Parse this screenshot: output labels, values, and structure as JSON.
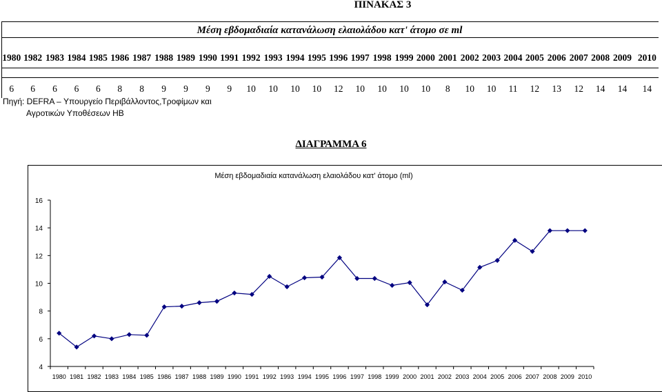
{
  "table": {
    "heading": "ΠΙΝΑΚΑΣ 3",
    "caption": "Μέση εβδομαδιαία κατανάλωση ελαιολάδου κατ' άτομο σε ml",
    "years": [
      "1980",
      "1982",
      "1983",
      "1984",
      "1985",
      "1986",
      "1987",
      "1988",
      "1989",
      "1990",
      "1991",
      "1992",
      "1993",
      "1994",
      "1995",
      "1996",
      "1997",
      "1998",
      "1999",
      "2000",
      "2001",
      "2002",
      "2003",
      "2004",
      "2005",
      "2006",
      "2007",
      "2008",
      "2009",
      "2010"
    ],
    "values": [
      "6",
      "6",
      "6",
      "6",
      "6",
      "8",
      "8",
      "9",
      "9",
      "9",
      "9",
      "10",
      "10",
      "10",
      "10",
      "12",
      "10",
      "10",
      "10",
      "10",
      "8",
      "10",
      "10",
      "11",
      "12",
      "13",
      "12",
      "14",
      "14",
      "14"
    ],
    "source_line1": "Πηγή: DEFRA – Υπουργείο Περιβάλλοντος,Τροφίμων και",
    "source_line2": "Αγροτικών Υποθέσεων ΗΒ"
  },
  "diagram_heading": "ΔΙΑΓΡΑΜΜΑ 6",
  "chart_data": {
    "type": "line",
    "title": "Μέση εβδομαδιαία κατανάλωση ελαιολάδου κατ' άτομο (ml)",
    "xlabel": "",
    "ylabel": "",
    "categories": [
      "1980",
      "1981",
      "1982",
      "1983",
      "1984",
      "1985",
      "1986",
      "1987",
      "1988",
      "1989",
      "1990",
      "1991",
      "1992",
      "1993",
      "1994",
      "1995",
      "1996",
      "1997",
      "1998",
      "1999",
      "2000",
      "2001",
      "2002",
      "2003",
      "2004",
      "2005",
      "2006",
      "2007",
      "2008",
      "2009",
      "2010"
    ],
    "series": [
      {
        "name": "",
        "color": "#000080",
        "values": [
          6.4,
          5.4,
          6.2,
          6.0,
          6.3,
          6.25,
          8.3,
          8.35,
          8.6,
          8.7,
          9.3,
          9.2,
          10.5,
          9.75,
          10.4,
          10.45,
          11.85,
          10.35,
          10.35,
          9.85,
          10.05,
          8.45,
          10.1,
          9.5,
          11.15,
          11.65,
          13.1,
          12.3,
          13.8,
          13.8,
          13.8
        ]
      }
    ],
    "ylim": [
      4,
      16
    ],
    "yticks": [
      "4",
      "6",
      "8",
      "10",
      "12",
      "14",
      "16"
    ],
    "grid": false,
    "legend": "none"
  }
}
